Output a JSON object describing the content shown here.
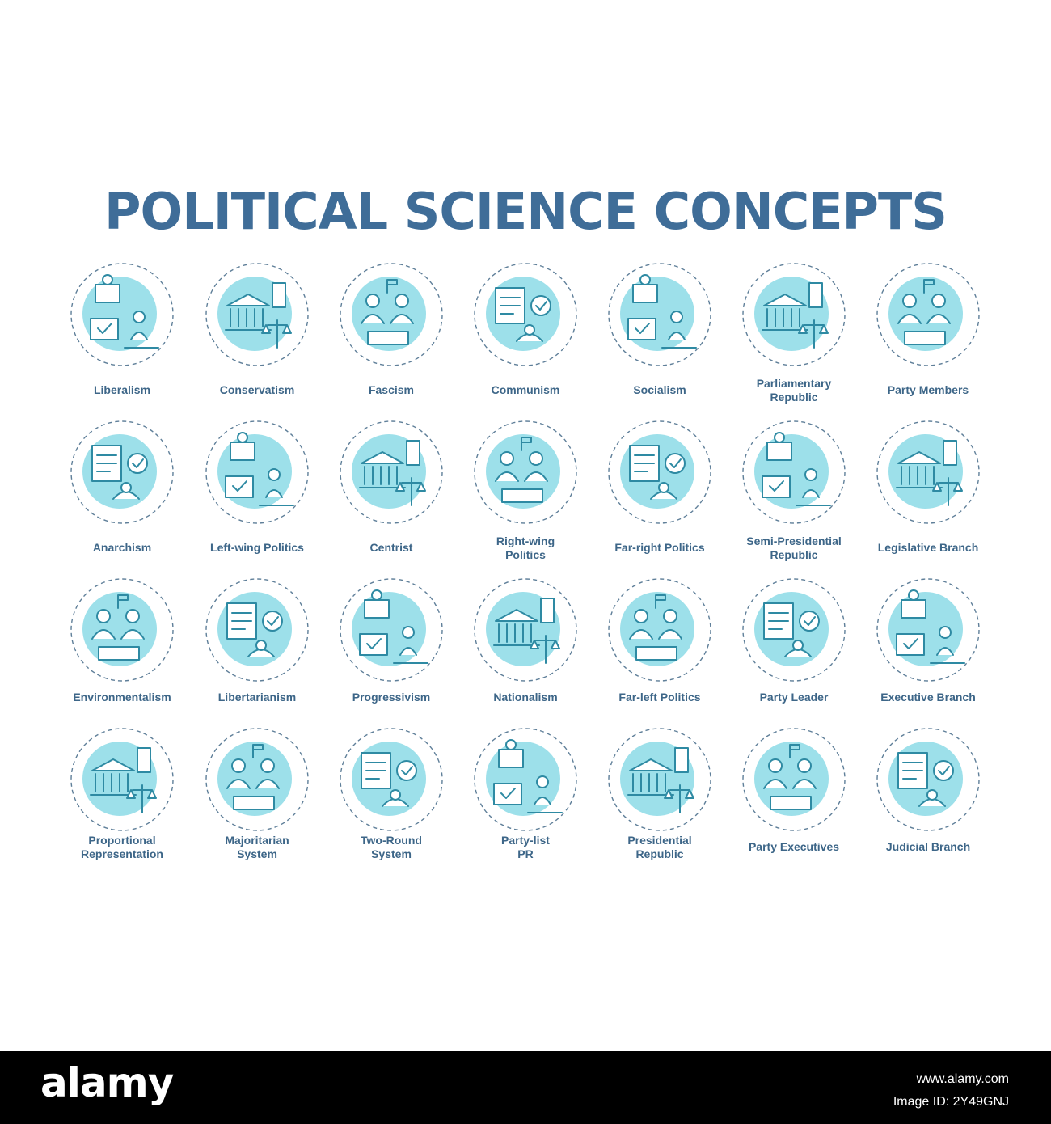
{
  "title": "POLITICAL SCIENCE CONCEPTS",
  "colors": {
    "title": "#3f6d98",
    "label": "#3d6688",
    "accent_fill": "#9de0ea",
    "line": "#2e8aa3",
    "dash": "#5f7f99",
    "footer_bg": "#000000",
    "footer_text": "#ffffff"
  },
  "icons": [
    {
      "label": "Liberalism",
      "icon": "ballot-voting-icon"
    },
    {
      "label": "Conservatism",
      "icon": "capitol-scales-icon"
    },
    {
      "label": "Fascism",
      "icon": "tank-army-icon"
    },
    {
      "label": "Communism",
      "icon": "collective-people-icon"
    },
    {
      "label": "Socialism",
      "icon": "government-scales-icon"
    },
    {
      "label": "Parliamentary Republic",
      "icon": "parliament-building-icon"
    },
    {
      "label": "Party Members",
      "icon": "group-members-icon"
    },
    {
      "label": "Anarchism",
      "icon": "raised-fists-icon"
    },
    {
      "label": "Left-wing Politics",
      "icon": "book-scales-icon"
    },
    {
      "label": "Centrist",
      "icon": "compass-handshake-icon"
    },
    {
      "label": "Right-wing Politics",
      "icon": "shield-sword-icon"
    },
    {
      "label": "Far-right Politics",
      "icon": "monument-protest-icon"
    },
    {
      "label": "Semi-Presidential Republic",
      "icon": "capitol-stars-icon"
    },
    {
      "label": "Legislative Branch",
      "icon": "capitol-gavel-icon"
    },
    {
      "label": "Environmentalism",
      "icon": "globe-tree-icon"
    },
    {
      "label": "Libertarianism",
      "icon": "torch-handshake-icon"
    },
    {
      "label": "Progressivism",
      "icon": "growth-chart-icon"
    },
    {
      "label": "Nationalism",
      "icon": "flag-speaker-icon"
    },
    {
      "label": "Far-left Politics",
      "icon": "fist-gear-icon"
    },
    {
      "label": "Party Leader",
      "icon": "podium-leader-icon"
    },
    {
      "label": "Executive Branch",
      "icon": "gavel-gears-icon"
    },
    {
      "label": "Proportional Representation",
      "icon": "pie-seats-icon"
    },
    {
      "label": "Majoritarian System",
      "icon": "donut-ballot-icon"
    },
    {
      "label": "Two-Round System",
      "icon": "checklist-voters-icon"
    },
    {
      "label": "Party-list PR",
      "icon": "list-arrows-icon"
    },
    {
      "label": "Presidential Republic",
      "icon": "folder-podium-icon"
    },
    {
      "label": "Party Executives",
      "icon": "target-capitol-icon"
    },
    {
      "label": "Judicial Branch",
      "icon": "justice-scales-icon"
    }
  ],
  "footer": {
    "logo": "alamy",
    "image_id": "Image ID: 2Y49GNJ",
    "url": "www.alamy.com"
  }
}
